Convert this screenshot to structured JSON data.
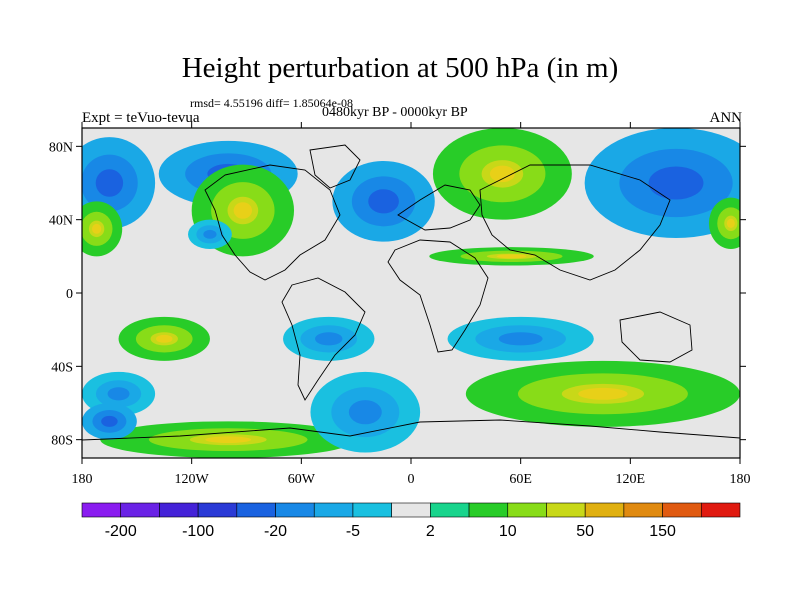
{
  "title": "Height perturbation at 500 hPa (in m)",
  "stats": "rmsd= 4.55196 diff= 1.85064e-08",
  "experiment": "Expt = teVuo-tevua",
  "period": "0480kyr BP - 0000kyr BP",
  "season": "ANN",
  "map": {
    "projection": "cylindrical equidistant",
    "lon_range": [
      -180,
      180
    ],
    "lat_range": [
      -90,
      90
    ],
    "lat_ticks": [
      {
        "label": "80N",
        "lat": 80
      },
      {
        "label": "40N",
        "lat": 40
      },
      {
        "label": "0",
        "lat": 0
      },
      {
        "label": "40S",
        "lat": -40
      },
      {
        "label": "80S",
        "lat": -80
      }
    ],
    "lon_ticks": [
      {
        "label": "180",
        "lon": -180
      },
      {
        "label": "120W",
        "lon": -120
      },
      {
        "label": "60W",
        "lon": -60
      },
      {
        "label": "0",
        "lon": 0
      },
      {
        "label": "60E",
        "lon": 60
      },
      {
        "label": "120E",
        "lon": 120
      },
      {
        "label": "180",
        "lon": 180
      }
    ],
    "background_color": "#e6e6e6"
  },
  "colorbar": {
    "colors": [
      "#8a1cf0",
      "#6a22e6",
      "#4422d8",
      "#2a3ad6",
      "#1a62e0",
      "#1888e6",
      "#1aa8e6",
      "#1ac0e0",
      "#e6e6e6",
      "#18d48c",
      "#28cc28",
      "#88dc18",
      "#c8d818",
      "#e0b010",
      "#e08a10",
      "#e05a10",
      "#e01a10"
    ],
    "labels": [
      {
        "text": "-200",
        "boundary": 1
      },
      {
        "text": "-100",
        "boundary": 3
      },
      {
        "text": "-20",
        "boundary": 5
      },
      {
        "text": "-5",
        "boundary": 7
      },
      {
        "text": "2",
        "boundary": 9
      },
      {
        "text": "10",
        "boundary": 11
      },
      {
        "text": "50",
        "boundary": 13
      },
      {
        "text": "150",
        "boundary": 15
      }
    ]
  },
  "field_blobs": [
    {
      "lon": -100,
      "lat": 65,
      "rx": 38,
      "ry": 18,
      "color": "blue"
    },
    {
      "lon": -15,
      "lat": 50,
      "rx": 28,
      "ry": 22,
      "color": "blue"
    },
    {
      "lon": 145,
      "lat": 60,
      "rx": 50,
      "ry": 30,
      "color": "blue"
    },
    {
      "lon": -165,
      "lat": 60,
      "rx": 25,
      "ry": 25,
      "color": "blue"
    },
    {
      "lon": 50,
      "lat": 65,
      "rx": 38,
      "ry": 25,
      "color": "green"
    },
    {
      "lon": -92,
      "lat": 45,
      "rx": 28,
      "ry": 25,
      "color": "green"
    },
    {
      "lon": -172,
      "lat": 35,
      "rx": 14,
      "ry": 15,
      "color": "green"
    },
    {
      "lon": 175,
      "lat": 38,
      "rx": 12,
      "ry": 14,
      "color": "green"
    },
    {
      "lon": 55,
      "lat": 20,
      "rx": 45,
      "ry": 5,
      "color": "green"
    },
    {
      "lon": -135,
      "lat": -25,
      "rx": 25,
      "ry": 12,
      "color": "green"
    },
    {
      "lon": 105,
      "lat": -55,
      "rx": 75,
      "ry": 18,
      "color": "green"
    },
    {
      "lon": -100,
      "lat": -80,
      "rx": 70,
      "ry": 10,
      "color": "green"
    },
    {
      "lon": 60,
      "lat": -25,
      "rx": 40,
      "ry": 12,
      "color": "cyan"
    },
    {
      "lon": -45,
      "lat": -25,
      "rx": 25,
      "ry": 12,
      "color": "cyan"
    },
    {
      "lon": -25,
      "lat": -65,
      "rx": 30,
      "ry": 22,
      "color": "cyan"
    },
    {
      "lon": -160,
      "lat": -55,
      "rx": 20,
      "ry": 12,
      "color": "cyan"
    },
    {
      "lon": -165,
      "lat": -70,
      "rx": 15,
      "ry": 10,
      "color": "blue"
    },
    {
      "lon": -110,
      "lat": 32,
      "rx": 12,
      "ry": 8,
      "color": "cyan"
    }
  ]
}
